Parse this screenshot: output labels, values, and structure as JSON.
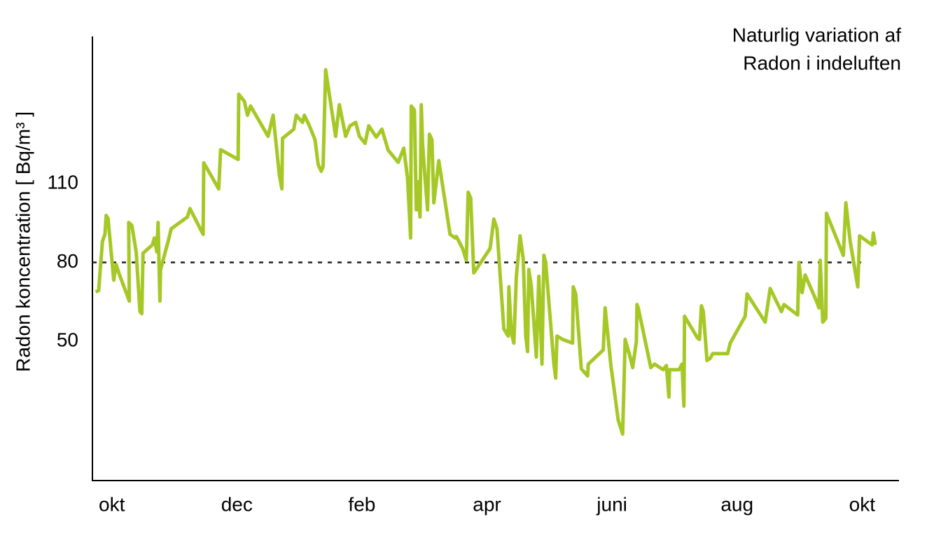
{
  "chart_data": {
    "type": "line",
    "title_lines": [
      "Naturlig variation af",
      "Radon i indeluften"
    ],
    "y_label": "Radon koncentration [ Bq/m³ ]",
    "xlim": [
      -0.31,
      12.59
    ],
    "xticks": [
      {
        "value": 0,
        "label": "okt"
      },
      {
        "value": 2,
        "label": "dec"
      },
      {
        "value": 4,
        "label": "feb"
      },
      {
        "value": 6,
        "label": "apr"
      },
      {
        "value": 8,
        "label": "juni"
      },
      {
        "value": 10,
        "label": "aug"
      },
      {
        "value": 12,
        "label": "okt"
      }
    ],
    "ylim": [
      -3,
      166
    ],
    "yticks": [
      50,
      80,
      110
    ],
    "reference_line": 80,
    "color": "#a5c826",
    "x": [
      -0.26,
      -0.21,
      -0.15,
      -0.11,
      -0.09,
      -0.06,
      0,
      0.03,
      0.07,
      0.12,
      0.28,
      0.27,
      0.32,
      0.39,
      0.45,
      0.48,
      0.5,
      0.65,
      0.68,
      0.72,
      0.74,
      0.77,
      0.78,
      0.9,
      0.95,
      1.21,
      1.25,
      1.46,
      1.47,
      1.71,
      1.74,
      2.02,
      2.03,
      2.12,
      2.17,
      2.22,
      2.5,
      2.58,
      2.68,
      2.72,
      2.73,
      2.91,
      2.95,
      3.05,
      3.08,
      3.16,
      3.25,
      3.3,
      3.35,
      3.38,
      3.42,
      3.47,
      3.58,
      3.64,
      3.74,
      3.81,
      3.9,
      3.96,
      4.05,
      4.11,
      4.23,
      4.32,
      4.42,
      4.58,
      4.67,
      4.73,
      4.78,
      4.79,
      4.84,
      4.87,
      4.89,
      4.93,
      4.95,
      4.97,
      5.01,
      5.05,
      5.08,
      5.12,
      5.15,
      5.23,
      5.41,
      5.49,
      5.51,
      5.61,
      5.67,
      5.7,
      5.74,
      5.79,
      6.05,
      6.11,
      6.16,
      6.27,
      6.34,
      6.35,
      6.39,
      6.43,
      6.47,
      6.53,
      6.58,
      6.62,
      6.65,
      6.67,
      6.71,
      6.79,
      6.83,
      6.88,
      6.91,
      6.94,
      7.07,
      7.1,
      7.12,
      7.21,
      7.37,
      7.38,
      7.42,
      7.51,
      7.61,
      7.62,
      7.86,
      7.89,
      7.98,
      8.1,
      8.17,
      8.21,
      8.29,
      8.33,
      8.39,
      8.4,
      8.42,
      8.62,
      8.68,
      8.82,
      8.87,
      8.91,
      8.92,
      9.07,
      9.12,
      9.15,
      9.16,
      9.37,
      9.4,
      9.43,
      9.46,
      9.52,
      9.57,
      9.61,
      9.85,
      9.89,
      10.13,
      10.16,
      10.45,
      10.53,
      10.71,
      10.75,
      10.97,
      10.99,
      11.04,
      11.09,
      11.27,
      11.31,
      11.33,
      11.37,
      11.42,
      11.43,
      11.7,
      11.74,
      11.81,
      11.93,
      11.96,
      12.16,
      12.18,
      12.21
    ],
    "values": [
      68.8,
      69.3,
      88,
      90.7,
      97.9,
      96.8,
      81.3,
      73.3,
      79.2,
      75.5,
      65.3,
      95.2,
      94.1,
      84,
      61.3,
      60.5,
      83.5,
      86.7,
      89.3,
      84,
      95.2,
      65.3,
      77.3,
      88,
      92.8,
      97.3,
      100.5,
      90.7,
      117.9,
      108,
      122.9,
      119.2,
      144,
      141.3,
      136,
      139.5,
      128,
      136,
      113.3,
      108,
      127.2,
      130.7,
      136,
      133.3,
      136,
      132,
      126.7,
      117.3,
      114.7,
      116.5,
      153.3,
      145.3,
      128,
      140,
      128,
      132,
      133.3,
      128,
      125.3,
      132,
      127.7,
      130.7,
      122.7,
      118.1,
      123.5,
      112,
      89.3,
      139.5,
      137.9,
      100,
      110.7,
      97.3,
      140,
      125.3,
      112,
      100,
      128.8,
      126.7,
      102.7,
      118.7,
      90.7,
      89.3,
      89.9,
      85.3,
      80.8,
      106.7,
      104.5,
      76,
      85.3,
      96.5,
      92.8,
      54.7,
      52,
      70.7,
      53.3,
      49.3,
      74.7,
      90.1,
      81.3,
      52,
      46.1,
      77.3,
      70.7,
      44,
      74.7,
      41.3,
      82.7,
      80,
      41.3,
      36,
      52,
      50.7,
      49.3,
      70.7,
      68,
      39.5,
      36.8,
      41.3,
      46.7,
      62.7,
      41.3,
      20,
      14.7,
      50.7,
      44,
      40,
      49.9,
      64,
      62.7,
      40,
      41.3,
      39.2,
      40.8,
      28.8,
      39.2,
      39.2,
      41.3,
      25.3,
      59.5,
      51.2,
      50.7,
      63.5,
      61.3,
      42.7,
      43.5,
      45.3,
      45.3,
      49.3,
      59.5,
      68,
      57.3,
      70.1,
      61.3,
      64,
      60,
      80,
      68.5,
      75.2,
      65.3,
      62.7,
      80.8,
      57.3,
      58.7,
      98.7,
      82.7,
      102.7,
      88,
      70.7,
      90.1,
      86.7,
      91.2,
      86.7
    ]
  }
}
